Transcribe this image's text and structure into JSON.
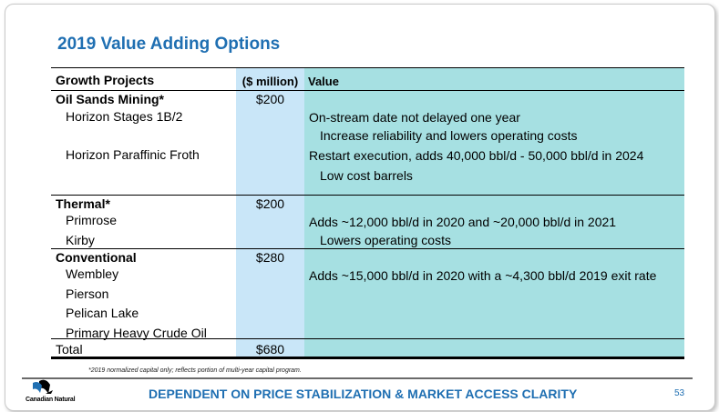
{
  "title": "2019 Value Adding Options",
  "table": {
    "headers": {
      "project": "Growth Projects",
      "million": "($ million)",
      "value": "Value"
    },
    "oil_sands": {
      "name": "Oil Sands Mining*",
      "amount": "$200",
      "items": [
        "Horizon Stages 1B/2",
        "Horizon Paraffinic Froth"
      ],
      "values": [
        "On-stream date not delayed one year",
        "Increase reliability and lowers operating costs",
        "Restart execution, adds 40,000 bbl/d - 50,000 bbl/d in 2024",
        "Low cost barrels"
      ]
    },
    "thermal": {
      "name": "Thermal*",
      "amount": "$200",
      "items": [
        "Primrose",
        "Kirby"
      ],
      "values": [
        "Adds ~12,000 bbl/d in 2020 and ~20,000 bbl/d in 2021",
        "Lowers operating costs"
      ]
    },
    "conventional": {
      "name": "Conventional",
      "amount": "$280",
      "items": [
        "Wembley",
        "Pierson",
        "Pelican Lake",
        "Primary Heavy Crude Oil"
      ],
      "values": [
        "Adds ~15,000 bbl/d in 2020 with a ~4,300 bbl/d 2019 exit rate"
      ]
    },
    "total": {
      "label": "Total",
      "amount": "$680"
    }
  },
  "footnote": "*2019 normalized capital only; reflects portion of multi-year capital program.",
  "footer": "DEPENDENT ON PRICE STABILIZATION & MARKET ACCESS CLARITY",
  "page_number": "53",
  "logo_text": "Canadian Natural",
  "colors": {
    "accent": "#1f6fb2",
    "million_col": "#c9e6f8",
    "value_col": "#a6e0e2"
  }
}
